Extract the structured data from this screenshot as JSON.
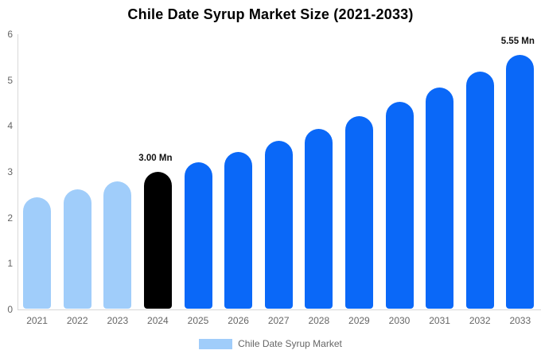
{
  "chart_data": {
    "type": "bar",
    "title": "Chile Date Syrup Market Size (2021-2033)",
    "unit": "Mn",
    "categories": [
      "2021",
      "2022",
      "2023",
      "2024",
      "2025",
      "2026",
      "2027",
      "2028",
      "2029",
      "2030",
      "2031",
      "2032",
      "2033"
    ],
    "values": [
      2.45,
      2.62,
      2.8,
      3.0,
      3.21,
      3.44,
      3.68,
      3.94,
      4.22,
      4.52,
      4.84,
      5.18,
      5.55
    ],
    "point_labels": [
      "",
      "",
      "",
      "3.00 Mn",
      "",
      "",
      "",
      "",
      "",
      "",
      "",
      "",
      "5.55 Mn"
    ],
    "point_colors": [
      "#A0CDFA",
      "#A0CDFA",
      "#A0CDFA",
      "#000000",
      "#0A68F8",
      "#0A68F8",
      "#0A68F8",
      "#0A68F8",
      "#0A68F8",
      "#0A68F8",
      "#0A68F8",
      "#0A68F8",
      "#0A68F8"
    ],
    "colors": {
      "historical_bar": "#A0CDFA",
      "base_year_bar": "#000000",
      "forecast_bar": "#0A68F8",
      "axis_line": "#d8d8d8",
      "tick_text": "#666666"
    },
    "xlabel": "",
    "ylabel": "",
    "ylim": [
      0,
      6
    ],
    "yticks": [
      0,
      1,
      2,
      3,
      4,
      5,
      6
    ],
    "grid": false,
    "legend": {
      "label": "Chile Date Syrup Market",
      "swatch_color": "#A0CDFA",
      "position": "bottom-center"
    }
  }
}
